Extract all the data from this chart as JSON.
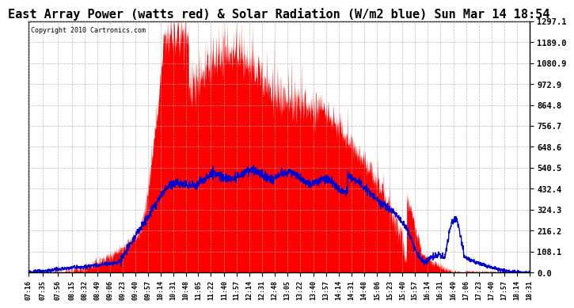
{
  "title": "East Array Power (watts red) & Solar Radiation (W/m2 blue) Sun Mar 14 18:54",
  "copyright": "Copyright 2010 Cartronics.com",
  "ymax": 1297.1,
  "ytick_values": [
    0.0,
    108.1,
    216.2,
    324.3,
    432.4,
    540.5,
    648.6,
    756.7,
    864.8,
    972.9,
    1080.9,
    1189.0,
    1297.1
  ],
  "xtick_labels": [
    "07:16",
    "07:35",
    "07:56",
    "08:15",
    "08:32",
    "08:49",
    "09:06",
    "09:23",
    "09:40",
    "09:57",
    "10:14",
    "10:31",
    "10:48",
    "11:05",
    "11:22",
    "11:40",
    "11:57",
    "12:14",
    "12:31",
    "12:48",
    "13:05",
    "13:22",
    "13:40",
    "13:57",
    "14:14",
    "14:31",
    "14:48",
    "15:06",
    "15:23",
    "15:40",
    "15:57",
    "16:14",
    "16:31",
    "16:49",
    "17:06",
    "17:23",
    "17:40",
    "17:57",
    "18:14",
    "18:31"
  ],
  "bg_color": "#ffffff",
  "grid_color": "#aaaaaa",
  "title_fontsize": 11,
  "red_color": "#ff0000",
  "blue_color": "#0000cc"
}
